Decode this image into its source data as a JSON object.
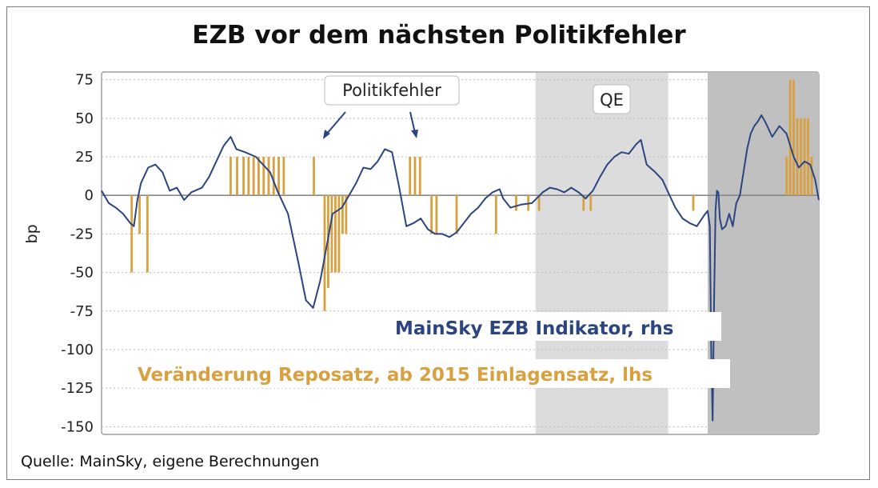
{
  "title": "EZB vor dem nächsten Politikfehler",
  "source": "Quelle: MainSky, eigene Berechnungen",
  "colors": {
    "indicator_line": "#2b4580",
    "repo_bars": "#d9a040",
    "qe_band": "#dcdcdc",
    "recent_band": "#c0c0c0",
    "zero_line": "#888888",
    "grid": "#bbbbbb"
  },
  "chart_data": {
    "type": "line",
    "title": "EZB vor dem nächsten Politikfehler",
    "ylabel": "bp",
    "xlabel": "",
    "ylim": [
      -155,
      80
    ],
    "yticks": [
      75,
      50,
      25,
      0,
      -25,
      -50,
      -75,
      -100,
      -125,
      -150
    ],
    "x_axis": "time index (0–1000), unlabeled in original",
    "grid": "horizontal dotted",
    "annotations": {
      "politikfehler": "Politikfehler",
      "qe": "QE",
      "legend_indicator": "MainSky EZB Indikator, rhs",
      "legend_repo": "Veränderung Reposatz, ab 2015 Einlagensatz, lhs"
    },
    "shaded_regions": [
      {
        "label": "QE",
        "x_from": 605,
        "x_to": 790
      },
      {
        "label": "",
        "x_from": 845,
        "x_to": 1000
      }
    ],
    "series": [
      {
        "name": "MainSky EZB Indikator, rhs",
        "kind": "line",
        "points": [
          [
            0,
            3
          ],
          [
            10,
            -5
          ],
          [
            20,
            -8
          ],
          [
            30,
            -12
          ],
          [
            40,
            -18
          ],
          [
            45,
            -20
          ],
          [
            50,
            -3
          ],
          [
            55,
            8
          ],
          [
            65,
            18
          ],
          [
            75,
            20
          ],
          [
            85,
            15
          ],
          [
            95,
            3
          ],
          [
            105,
            5
          ],
          [
            115,
            -3
          ],
          [
            125,
            2
          ],
          [
            140,
            5
          ],
          [
            150,
            12
          ],
          [
            160,
            22
          ],
          [
            170,
            32
          ],
          [
            180,
            38
          ],
          [
            188,
            30
          ],
          [
            200,
            28
          ],
          [
            215,
            25
          ],
          [
            225,
            20
          ],
          [
            235,
            15
          ],
          [
            245,
            3
          ],
          [
            260,
            -12
          ],
          [
            275,
            -45
          ],
          [
            285,
            -68
          ],
          [
            295,
            -73
          ],
          [
            305,
            -55
          ],
          [
            315,
            -30
          ],
          [
            322,
            -12
          ],
          [
            335,
            -8
          ],
          [
            345,
            0
          ],
          [
            355,
            8
          ],
          [
            365,
            18
          ],
          [
            375,
            17
          ],
          [
            385,
            22
          ],
          [
            395,
            30
          ],
          [
            405,
            28
          ],
          [
            415,
            5
          ],
          [
            425,
            -20
          ],
          [
            435,
            -18
          ],
          [
            445,
            -15
          ],
          [
            455,
            -22
          ],
          [
            465,
            -25
          ],
          [
            475,
            -25
          ],
          [
            485,
            -27
          ],
          [
            495,
            -24
          ],
          [
            505,
            -18
          ],
          [
            515,
            -12
          ],
          [
            525,
            -8
          ],
          [
            535,
            -2
          ],
          [
            545,
            2
          ],
          [
            555,
            4
          ],
          [
            560,
            -2
          ],
          [
            570,
            -8
          ],
          [
            585,
            -6
          ],
          [
            600,
            -5
          ],
          [
            615,
            2
          ],
          [
            625,
            5
          ],
          [
            635,
            4
          ],
          [
            645,
            2
          ],
          [
            655,
            5
          ],
          [
            665,
            2
          ],
          [
            675,
            -2
          ],
          [
            685,
            3
          ],
          [
            695,
            12
          ],
          [
            705,
            20
          ],
          [
            715,
            25
          ],
          [
            725,
            28
          ],
          [
            735,
            27
          ],
          [
            745,
            33
          ],
          [
            752,
            36
          ],
          [
            760,
            20
          ],
          [
            772,
            15
          ],
          [
            782,
            10
          ],
          [
            790,
            2
          ],
          [
            800,
            -8
          ],
          [
            810,
            -15
          ],
          [
            820,
            -18
          ],
          [
            830,
            -20
          ],
          [
            840,
            -13
          ],
          [
            845,
            -10
          ],
          [
            848,
            -20
          ],
          [
            850,
            -100
          ],
          [
            852,
            -146
          ],
          [
            854,
            -70
          ],
          [
            856,
            -10
          ],
          [
            858,
            3
          ],
          [
            860,
            2
          ],
          [
            862,
            -15
          ],
          [
            865,
            -22
          ],
          [
            870,
            -20
          ],
          [
            875,
            -12
          ],
          [
            880,
            -20
          ],
          [
            885,
            -5
          ],
          [
            890,
            0
          ],
          [
            895,
            15
          ],
          [
            900,
            30
          ],
          [
            905,
            40
          ],
          [
            910,
            45
          ],
          [
            915,
            48
          ],
          [
            920,
            52
          ],
          [
            925,
            48
          ],
          [
            930,
            43
          ],
          [
            935,
            38
          ],
          [
            945,
            45
          ],
          [
            955,
            40
          ],
          [
            965,
            25
          ],
          [
            972,
            18
          ],
          [
            980,
            22
          ],
          [
            988,
            20
          ],
          [
            995,
            10
          ],
          [
            1000,
            -3
          ]
        ]
      },
      {
        "name": "Veränderung Reposatz, ab 2015 Einlagensatz, lhs",
        "kind": "bar",
        "points": [
          [
            42,
            -50
          ],
          [
            53,
            -25
          ],
          [
            64,
            -50
          ],
          [
            180,
            25
          ],
          [
            189,
            25
          ],
          [
            198,
            25
          ],
          [
            205,
            25
          ],
          [
            212,
            25
          ],
          [
            219,
            25
          ],
          [
            226,
            25
          ],
          [
            233,
            25
          ],
          [
            240,
            25
          ],
          [
            247,
            25
          ],
          [
            254,
            25
          ],
          [
            296,
            25
          ],
          [
            311,
            -75
          ],
          [
            316,
            -60
          ],
          [
            321,
            -50
          ],
          [
            326,
            -50
          ],
          [
            331,
            -50
          ],
          [
            336,
            -25
          ],
          [
            341,
            -25
          ],
          [
            430,
            25
          ],
          [
            437,
            25
          ],
          [
            444,
            25
          ],
          [
            460,
            -25
          ],
          [
            467,
            -25
          ],
          [
            495,
            -25
          ],
          [
            550,
            -25
          ],
          [
            578,
            -10
          ],
          [
            595,
            -10
          ],
          [
            610,
            -10
          ],
          [
            672,
            -10
          ],
          [
            682,
            -10
          ],
          [
            825,
            -10
          ],
          [
            955,
            25
          ],
          [
            960,
            75
          ],
          [
            965,
            75
          ],
          [
            970,
            50
          ],
          [
            975,
            50
          ],
          [
            980,
            50
          ],
          [
            985,
            50
          ],
          [
            990,
            25
          ]
        ]
      }
    ]
  }
}
